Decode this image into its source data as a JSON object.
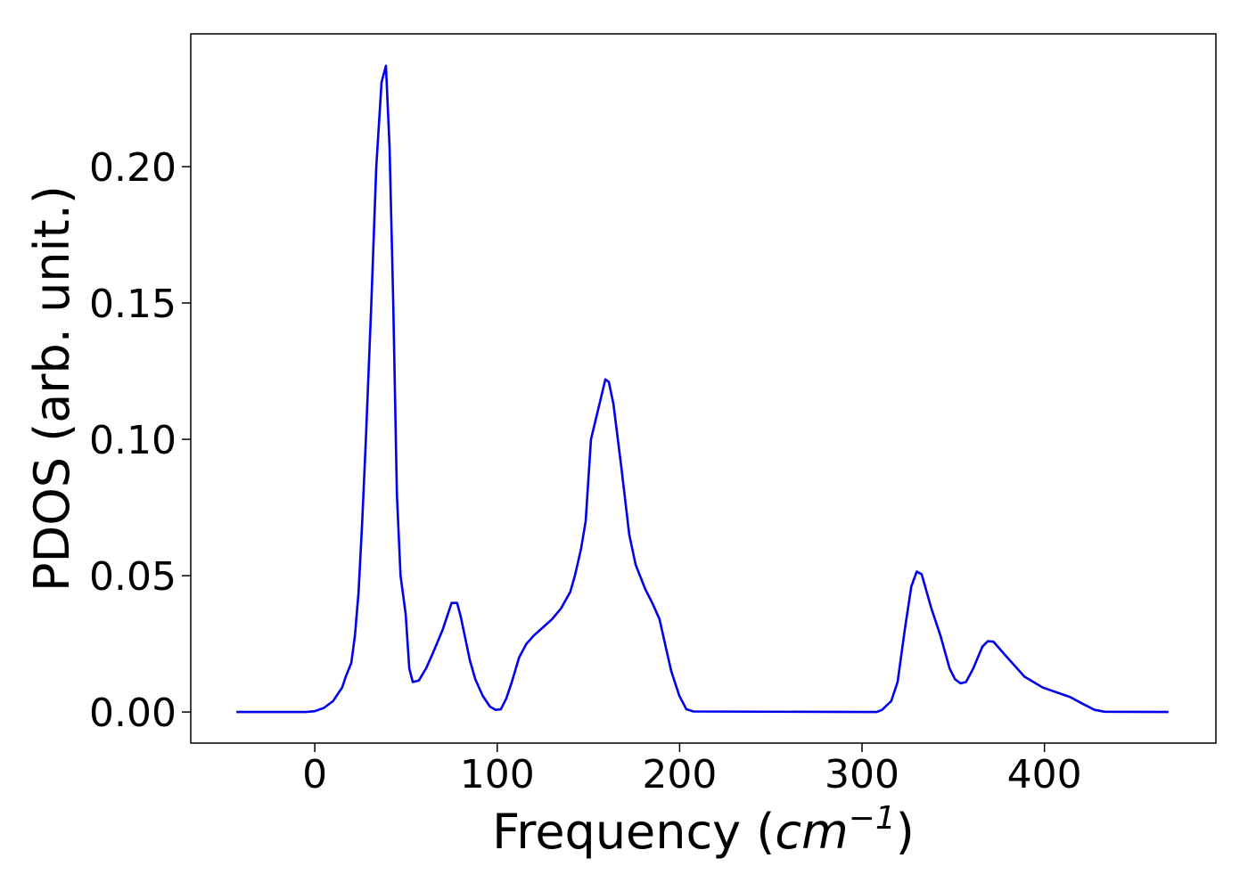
{
  "chart_data": {
    "type": "line",
    "ylabel": "PDOS (arb. unit.)",
    "xlabel": [
      "Frequency (",
      "cm",
      "−1",
      ")"
    ],
    "xlim": [
      -68,
      494
    ],
    "ylim": [
      -0.0114,
      0.2487
    ],
    "xticks": [
      0,
      100,
      200,
      300,
      400
    ],
    "yticks": [
      {
        "value": 0,
        "label": "0.00"
      },
      {
        "value": 0.05,
        "label": "0.05"
      },
      {
        "value": 0.1,
        "label": "0.10"
      },
      {
        "value": 0.15,
        "label": "0.15"
      },
      {
        "value": 0.2,
        "label": "0.20"
      }
    ],
    "grid": false,
    "series": [
      {
        "color": "#0000ee",
        "x": [
          -43,
          -5,
          0,
          5,
          10,
          15,
          17,
          20,
          22,
          24,
          26,
          28,
          31,
          33.7,
          36.6,
          39,
          41,
          43,
          45,
          47,
          49.8,
          51.8,
          53.7,
          57,
          61,
          65,
          70,
          75,
          78,
          80,
          85,
          88,
          92,
          96,
          99,
          102,
          105,
          108,
          112,
          116,
          120,
          125,
          130,
          135,
          140,
          142.6,
          146,
          148.5,
          151.4,
          156.8,
          159.3,
          161.2,
          163.7,
          168,
          172.4,
          175.9,
          181.2,
          185,
          189,
          192,
          195.4,
          199.8,
          203.7,
          207.6,
          300,
          308,
          311,
          316,
          319.5,
          323.4,
          327,
          330,
          332.7,
          338,
          343,
          348,
          351,
          354,
          357,
          361,
          366,
          369,
          372,
          379.6,
          389,
          399,
          414,
          421,
          427.5,
          433,
          468
        ],
        "values": [
          0,
          0,
          0.0003,
          0.0015,
          0.004,
          0.009,
          0.013,
          0.018,
          0.028,
          0.044,
          0.07,
          0.1,
          0.15,
          0.2,
          0.231,
          0.237,
          0.207,
          0.15,
          0.08,
          0.05,
          0.036,
          0.016,
          0.011,
          0.0115,
          0.016,
          0.022,
          0.03,
          0.04,
          0.04,
          0.035,
          0.019,
          0.012,
          0.006,
          0.002,
          0.0008,
          0.001,
          0.005,
          0.011,
          0.02,
          0.025,
          0.028,
          0.031,
          0.034,
          0.038,
          0.044,
          0.05,
          0.06,
          0.07,
          0.1,
          0.115,
          0.122,
          0.121,
          0.113,
          0.09,
          0.065,
          0.054,
          0.045,
          0.04,
          0.034,
          0.025,
          0.015,
          0.006,
          0.001,
          0.0002,
          0,
          0,
          0.0008,
          0.004,
          0.011,
          0.03,
          0.046,
          0.0515,
          0.0505,
          0.038,
          0.028,
          0.016,
          0.012,
          0.0105,
          0.011,
          0.016,
          0.024,
          0.026,
          0.0258,
          0.02,
          0.013,
          0.009,
          0.0055,
          0.003,
          0.0008,
          0.0001,
          0
        ]
      }
    ]
  }
}
